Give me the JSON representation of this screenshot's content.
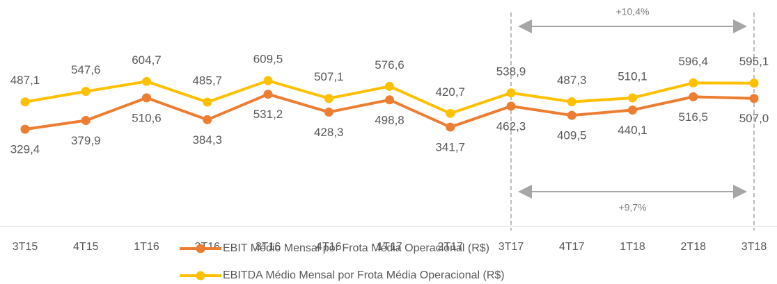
{
  "chart_data": {
    "type": "line",
    "categories": [
      "3T15",
      "4T15",
      "1T16",
      "2T16",
      "3T16",
      "4T16",
      "1T17",
      "2T17",
      "3T17",
      "4T17",
      "1T18",
      "2T18",
      "3T18"
    ],
    "series": [
      {
        "name": "EBIT Médio Mensal por Frota Média Operacional (R$)",
        "color": "#ed7d31",
        "values": [
          329.4,
          379.9,
          510.6,
          384.3,
          531.2,
          428.3,
          498.8,
          341.7,
          462.3,
          409.5,
          440.1,
          516.5,
          507.0
        ],
        "value_labels": [
          "329,4",
          "379,9",
          "510,6",
          "384,3",
          "531,2",
          "428,3",
          "498,8",
          "341,7",
          "462,3",
          "409,5",
          "440,1",
          "516,5",
          "507,0"
        ]
      },
      {
        "name": "EBITDA Médio Mensal por Frota Média Operacional (R$)",
        "color": "#ffc000",
        "values": [
          487.1,
          547.6,
          604.7,
          485.7,
          609.5,
          507.1,
          576.6,
          420.7,
          538.9,
          487.3,
          510.1,
          596.4,
          595.1
        ],
        "value_labels": [
          "487,1",
          "547,6",
          "604,7",
          "485,7",
          "609,5",
          "507,1",
          "576,6",
          "420,7",
          "538,9",
          "487,3",
          "510,1",
          "596,4",
          "595,1"
        ]
      }
    ],
    "ylim": [
      -230,
      900
    ],
    "annotations": [
      "+10,4%",
      "+9,7%"
    ]
  }
}
